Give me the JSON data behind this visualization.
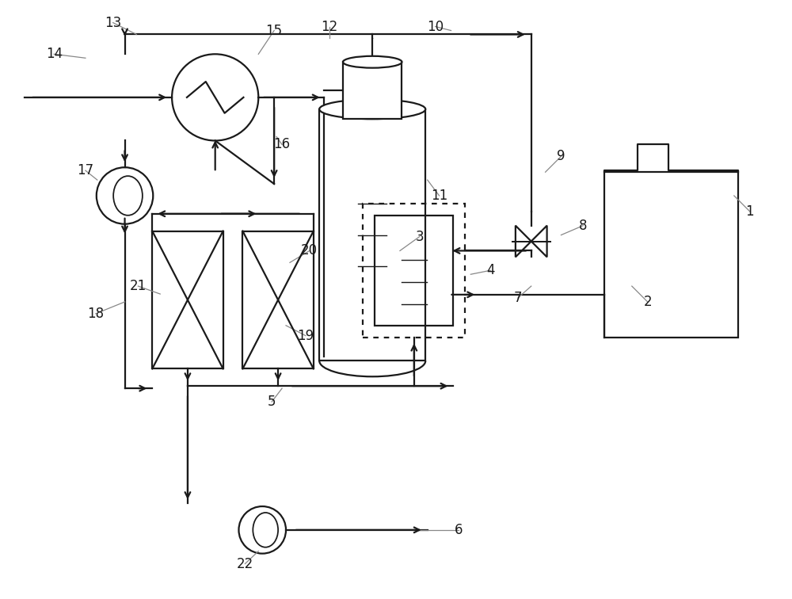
{
  "bg_color": "#ffffff",
  "line_color": "#1a1a1a",
  "lw": 1.6,
  "fig_w": 10.0,
  "fig_h": 7.56,
  "dpi": 100
}
